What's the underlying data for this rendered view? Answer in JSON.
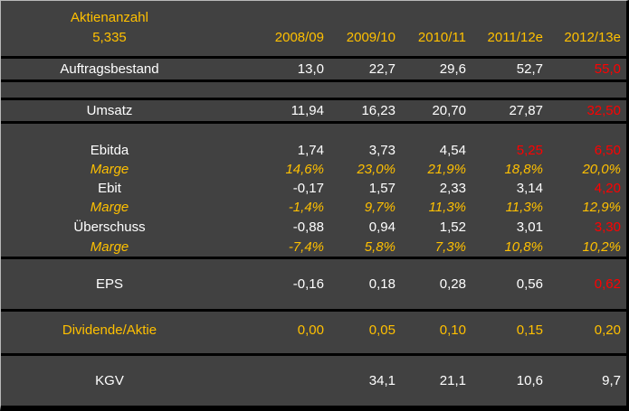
{
  "meta": {
    "shares_label": "Aktienanzahl",
    "shares_value": "5,335"
  },
  "colors": {
    "background": "#414141",
    "divider_line": "#000000",
    "text_default": "#ffffff",
    "accent_gold": "#ffc000",
    "estimate_red": "#ff0000",
    "outer_edge_light": "#b9b9b9"
  },
  "table": {
    "columns": [
      "2008/09",
      "2009/10",
      "2010/11",
      "2011/12e",
      "2012/13e"
    ],
    "rows": {
      "auftragsbestand": {
        "label": "Auftragsbestand",
        "values": [
          "13,0",
          "22,7",
          "29,6",
          "52,7",
          "55,0"
        ]
      },
      "umsatz": {
        "label": "Umsatz",
        "values": [
          "11,94",
          "16,23",
          "20,70",
          "27,87",
          "32,50"
        ]
      },
      "ebitda": {
        "label": "Ebitda",
        "values": [
          "1,74",
          "3,73",
          "4,54",
          "5,25",
          "6,50"
        ]
      },
      "marge_ebitda": {
        "label": "Marge",
        "values": [
          "14,6%",
          "23,0%",
          "21,9%",
          "18,8%",
          "20,0%"
        ]
      },
      "ebit": {
        "label": "Ebit",
        "values": [
          "-0,17",
          "1,57",
          "2,33",
          "3,14",
          "4,20"
        ]
      },
      "marge_ebit": {
        "label": "Marge",
        "values": [
          "-1,4%",
          "9,7%",
          "11,3%",
          "11,3%",
          "12,9%"
        ]
      },
      "ueberschuss": {
        "label": "Überschuss",
        "values": [
          "-0,88",
          "0,94",
          "1,52",
          "3,01",
          "3,30"
        ]
      },
      "marge_ueberschuss": {
        "label": "Marge",
        "values": [
          "-7,4%",
          "5,8%",
          "7,3%",
          "10,8%",
          "10,2%"
        ]
      },
      "eps": {
        "label": "EPS",
        "values": [
          "-0,16",
          "0,18",
          "0,28",
          "0,56",
          "0,62"
        ]
      },
      "dividende": {
        "label": "Dividende/Aktie",
        "values": [
          "0,00",
          "0,05",
          "0,10",
          "0,15",
          "0,20"
        ]
      },
      "kgv": {
        "label": "KGV",
        "values": [
          "",
          "34,1",
          "21,1",
          "10,6",
          "9,7"
        ]
      }
    }
  }
}
